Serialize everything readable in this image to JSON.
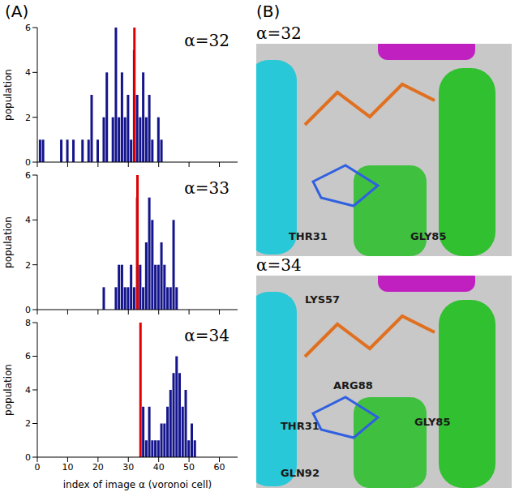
{
  "panel_labels": [
    "(A)",
    "(B)"
  ],
  "chart_data": [
    {
      "type": "bar",
      "title": "α=32",
      "ylabel": "population",
      "reference_x": 32,
      "color": "#14148c",
      "x": [
        1,
        2,
        8,
        10,
        12,
        15,
        17,
        18,
        20,
        22,
        23,
        25,
        26,
        27,
        28,
        29,
        30,
        31,
        32,
        33,
        34,
        35,
        36,
        37,
        38,
        40,
        41
      ],
      "values": [
        1,
        1,
        1,
        1,
        1,
        1,
        1,
        3,
        1,
        2,
        4,
        2,
        6,
        2,
        4,
        2,
        3,
        1,
        5,
        3,
        2,
        4,
        2,
        3,
        1,
        2,
        1
      ],
      "xlim": [
        0,
        66
      ],
      "xticks": [
        0,
        10,
        20,
        30,
        40,
        50,
        60
      ],
      "ylim": [
        0,
        6
      ],
      "yticks": [
        0,
        2,
        4,
        6
      ],
      "tick_labels": "y"
    },
    {
      "type": "bar",
      "title": "α=33",
      "ylabel": "population",
      "reference_x": 33,
      "color": "#14148c",
      "x": [
        22,
        26,
        27,
        28,
        29,
        30,
        31,
        32,
        33,
        34,
        35,
        36,
        37,
        38,
        39,
        40,
        41,
        42,
        43,
        44,
        45,
        46
      ],
      "values": [
        1,
        1,
        2,
        2,
        1,
        1,
        2,
        1,
        5,
        2,
        1,
        3,
        5,
        4,
        2,
        2,
        3,
        2,
        1,
        1,
        4,
        1
      ],
      "xlim": [
        0,
        66
      ],
      "xticks": [
        0,
        10,
        20,
        30,
        40,
        50,
        60
      ],
      "ylim": [
        0,
        6
      ],
      "yticks": [
        0,
        2,
        4,
        6
      ],
      "tick_labels": "y"
    },
    {
      "type": "bar",
      "title": "α=34",
      "ylabel": "population",
      "xlabel": "index of image α (voronoi cell)",
      "reference_x": 34,
      "color": "#14148c",
      "x": [
        35,
        36,
        37,
        38,
        39,
        40,
        41,
        42,
        43,
        44,
        45,
        46,
        47,
        48,
        49,
        50,
        51,
        52
      ],
      "values": [
        3,
        1,
        3,
        1,
        1,
        1,
        2,
        2,
        3,
        4,
        5,
        6,
        5,
        3,
        4,
        1,
        2,
        1
      ],
      "xlim": [
        0,
        66
      ],
      "xticks": [
        0,
        10,
        20,
        30,
        40,
        50,
        60
      ],
      "ylim": [
        0,
        8
      ],
      "yticks": [
        0,
        2,
        4,
        6,
        8
      ]
    }
  ],
  "images": [
    {
      "title": "α=32",
      "labels": [
        "THR31",
        "GLY85"
      ]
    },
    {
      "title": "α=34",
      "labels": [
        "LYS57",
        "ARG88",
        "THR31",
        "GLN92",
        "GLY85"
      ]
    }
  ]
}
